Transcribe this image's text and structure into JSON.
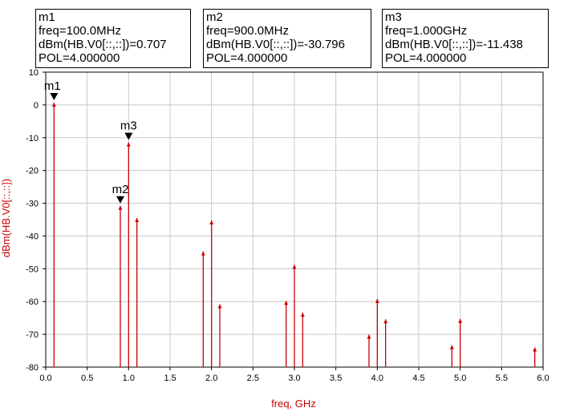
{
  "markers": [
    {
      "name": "m1",
      "freq_line": "freq=100.0MHz",
      "value_line": "dBm(HB.V0[::,::])=0.707",
      "pol_line": "POL=4.000000",
      "x": 0.1,
      "y": 0.707
    },
    {
      "name": "m2",
      "freq_line": "freq=900.0MHz",
      "value_line": "dBm(HB.V0[::,::])=-30.796",
      "pol_line": "POL=4.000000",
      "x": 0.9,
      "y": -30.796
    },
    {
      "name": "m3",
      "freq_line": "freq=1.000GHz",
      "value_line": "dBm(HB.V0[::,::])=-11.438",
      "pol_line": "POL=4.000000",
      "x": 1.0,
      "y": -11.438
    }
  ],
  "chart_data": {
    "type": "bar",
    "title": "",
    "xlabel": "freq, GHz",
    "ylabel": "dBm(HB.V0[::,::])",
    "xlim": [
      0.0,
      6.0
    ],
    "ylim": [
      -80,
      10
    ],
    "xticks": [
      "0.0",
      "0.5",
      "1.0",
      "1.5",
      "2.0",
      "2.5",
      "3.0",
      "3.5",
      "4.0",
      "4.5",
      "5.0",
      "5.5",
      "6.0"
    ],
    "yticks": [
      "10",
      "0",
      "-10",
      "-20",
      "-30",
      "-40",
      "-50",
      "-60",
      "-70",
      "-80"
    ],
    "grid": true,
    "series": [
      {
        "x": [
          0.1,
          0.9,
          1.0,
          1.1,
          1.9,
          2.0,
          2.1,
          2.9,
          3.0,
          3.1,
          3.9,
          4.0,
          4.1,
          4.9,
          5.0,
          5.9
        ],
        "y": [
          0.707,
          -30.796,
          -11.438,
          -34.5,
          -44.7,
          -35.2,
          -60.8,
          -59.8,
          -48.8,
          -63.4,
          -70.1,
          -59.2,
          -65.4,
          -73.3,
          -65.3,
          -74.0
        ]
      }
    ],
    "colors": {
      "series": "#cc0000",
      "axis_labels": "#cc0000",
      "grid": "#c8c8c8",
      "axis": "#000000"
    }
  }
}
